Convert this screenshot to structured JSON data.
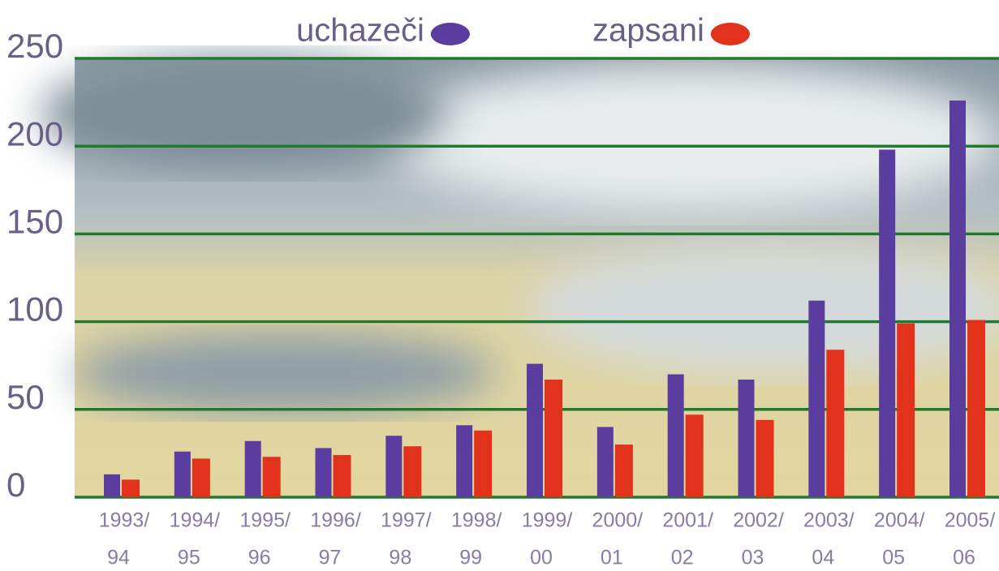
{
  "chart_data": {
    "type": "bar",
    "categories": [
      [
        "1993/",
        "94"
      ],
      [
        "1994/",
        "95"
      ],
      [
        "1995/",
        "96"
      ],
      [
        "1996/",
        "97"
      ],
      [
        "1997/",
        "98"
      ],
      [
        "1998/",
        "99"
      ],
      [
        "1999/",
        "00"
      ],
      [
        "2000/",
        "01"
      ],
      [
        "2001/",
        "02"
      ],
      [
        "2002/",
        "03"
      ],
      [
        "2003/",
        "04"
      ],
      [
        "2004/",
        "05"
      ],
      [
        "2005/",
        "06"
      ]
    ],
    "series": [
      {
        "name": "uchazeči",
        "color": "#5a3d9e",
        "values": [
          13,
          26,
          32,
          28,
          35,
          41,
          76,
          40,
          70,
          67,
          112,
          198,
          226
        ]
      },
      {
        "name": "zapsani",
        "color": "#e2321c",
        "values": [
          10,
          22,
          23,
          24,
          29,
          38,
          67,
          30,
          47,
          44,
          84,
          99,
          101
        ]
      }
    ],
    "ylim": [
      0,
      250
    ],
    "yticks": [
      0,
      50,
      100,
      150,
      200,
      250
    ],
    "grid": true,
    "legend": "top"
  }
}
